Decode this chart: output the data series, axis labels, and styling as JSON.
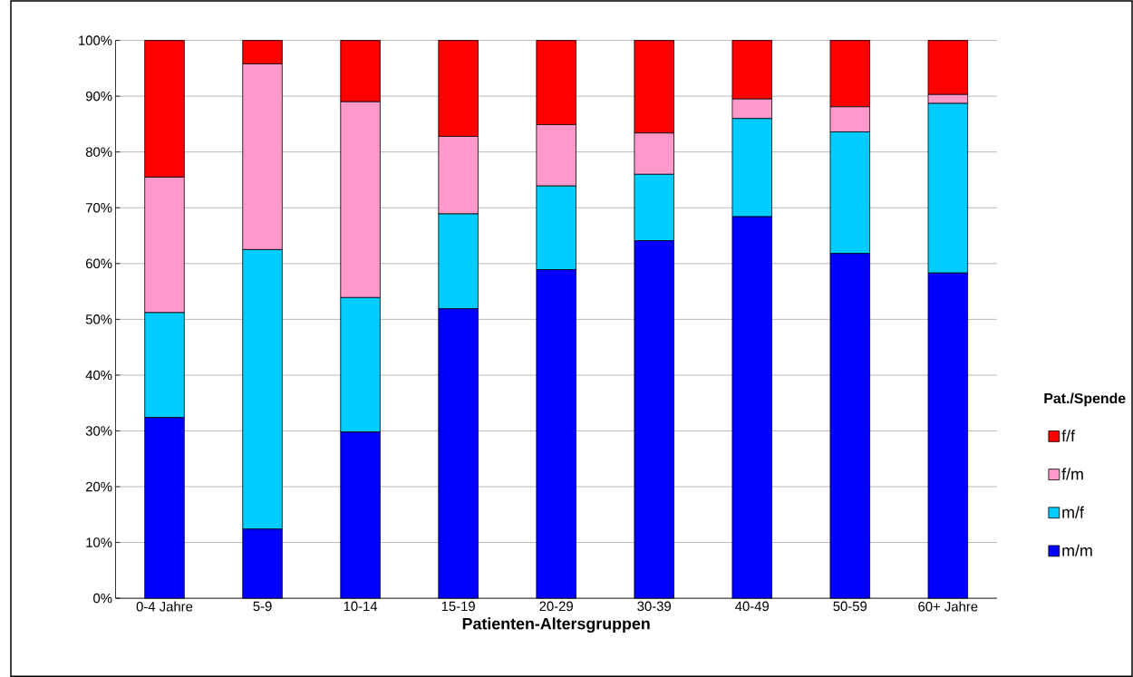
{
  "chart_data": {
    "type": "bar",
    "stacked": true,
    "xlabel": "Patienten-Altersgruppen",
    "legend_title": "Pat./Spende",
    "legend": "right",
    "grid": "y",
    "categories": [
      "0-4 Jahre",
      "5-9",
      "10-14",
      "15-19",
      "20-29",
      "30-39",
      "40-49",
      "50-59",
      "60+ Jahre"
    ],
    "series": [
      {
        "name": "m/m",
        "color": "#0000ff",
        "values": [
          32.4,
          12.4,
          29.8,
          51.9,
          58.9,
          64.1,
          68.4,
          61.8,
          58.3
        ]
      },
      {
        "name": "m/f",
        "color": "#00ccff",
        "values": [
          18.8,
          50.1,
          24.1,
          17.0,
          15.0,
          11.9,
          17.6,
          21.8,
          30.4
        ]
      },
      {
        "name": "f/m",
        "color": "#ff99cc",
        "values": [
          24.3,
          33.3,
          35.1,
          13.9,
          11.0,
          7.4,
          3.5,
          4.5,
          1.6
        ]
      },
      {
        "name": "f/f",
        "color": "#ff0000",
        "values": [
          24.5,
          4.2,
          11.0,
          17.2,
          15.1,
          16.6,
          10.5,
          11.9,
          9.7
        ]
      }
    ],
    "ylim": [
      0,
      100
    ],
    "yticks": [
      {
        "value": 0,
        "label": "0%"
      },
      {
        "value": 10,
        "label": "10%"
      },
      {
        "value": 20,
        "label": "20%"
      },
      {
        "value": 30,
        "label": "30%"
      },
      {
        "value": 40,
        "label": "40%"
      },
      {
        "value": 50,
        "label": "50%"
      },
      {
        "value": 60,
        "label": "60%"
      },
      {
        "value": 70,
        "label": "70%"
      },
      {
        "value": 80,
        "label": "80%"
      },
      {
        "value": 90,
        "label": "90%"
      },
      {
        "value": 100,
        "label": "100%"
      }
    ]
  }
}
